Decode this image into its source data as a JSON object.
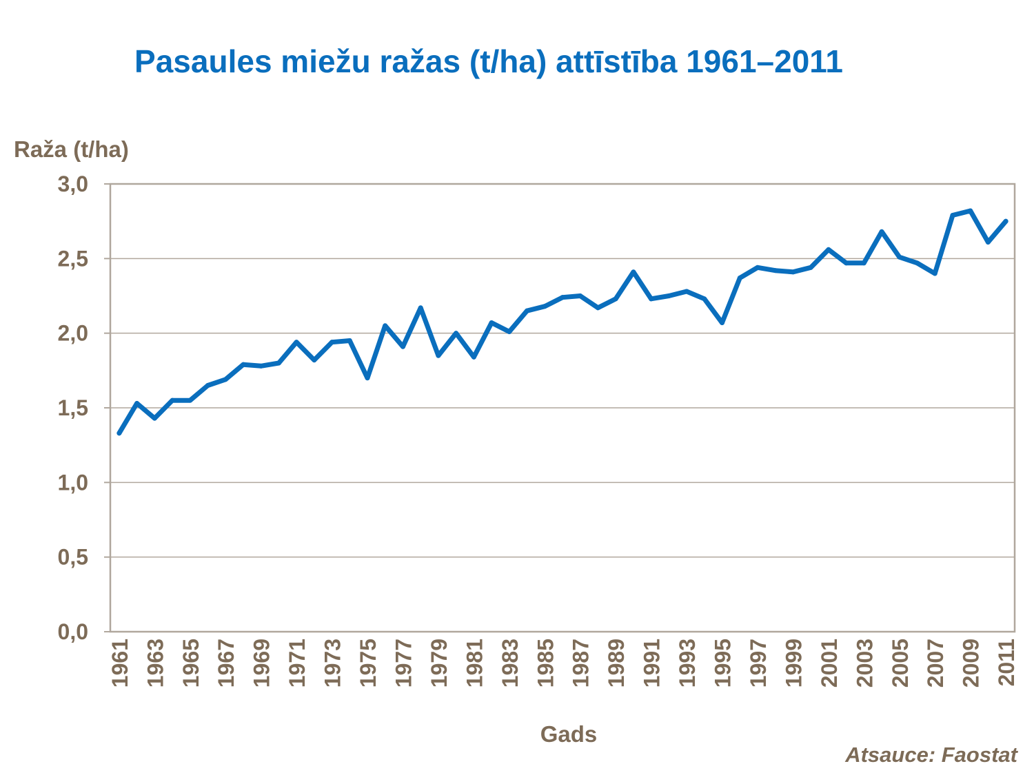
{
  "chart_data": {
    "type": "line",
    "title": "Pasaules miežu ražas (t/ha) attīstība 1961–2011",
    "ylabel": "Raža (t/ha)",
    "xlabel": "Gads",
    "ylim": [
      0,
      3.0
    ],
    "y_ticks": [
      "0,0",
      "0,5",
      "1,0",
      "1,5",
      "2,0",
      "2,5",
      "3,0"
    ],
    "x_tick_labels": [
      "1961",
      "1963",
      "1965",
      "1967",
      "1969",
      "1971",
      "1973",
      "1975",
      "1977",
      "1979",
      "1981",
      "1983",
      "1985",
      "1987",
      "1989",
      "1991",
      "1993",
      "1995",
      "1997",
      "1999",
      "2001",
      "2003",
      "2005",
      "2007",
      "2009",
      "2011"
    ],
    "x": [
      1961,
      1962,
      1963,
      1964,
      1965,
      1966,
      1967,
      1968,
      1969,
      1970,
      1971,
      1972,
      1973,
      1974,
      1975,
      1976,
      1977,
      1978,
      1979,
      1980,
      1981,
      1982,
      1983,
      1984,
      1985,
      1986,
      1987,
      1988,
      1989,
      1990,
      1991,
      1992,
      1993,
      1994,
      1995,
      1996,
      1997,
      1998,
      1999,
      2000,
      2001,
      2002,
      2003,
      2004,
      2005,
      2006,
      2007,
      2008,
      2009,
      2010,
      2011
    ],
    "series": [
      {
        "values": [
          1.33,
          1.53,
          1.43,
          1.55,
          1.55,
          1.65,
          1.69,
          1.79,
          1.78,
          1.8,
          1.94,
          1.82,
          1.94,
          1.95,
          1.7,
          2.05,
          1.91,
          2.17,
          1.85,
          2.0,
          1.84,
          2.07,
          2.01,
          2.15,
          2.18,
          2.24,
          2.25,
          2.17,
          2.23,
          2.41,
          2.23,
          2.25,
          2.28,
          2.23,
          2.07,
          2.37,
          2.44,
          2.42,
          2.41,
          2.44,
          2.56,
          2.47,
          2.47,
          2.68,
          2.51,
          2.47,
          2.4,
          2.79,
          2.82,
          2.61,
          2.75
        ],
        "color": "#0a6ebd"
      }
    ],
    "grid": true,
    "legend": "none"
  },
  "source": "Atsauce: Faostat",
  "colors": {
    "title": "#0a6ebd",
    "line": "#0a6ebd",
    "axis_text": "#7d6b57",
    "gridline": "#b0a79d",
    "frame": "#b0a79d"
  }
}
